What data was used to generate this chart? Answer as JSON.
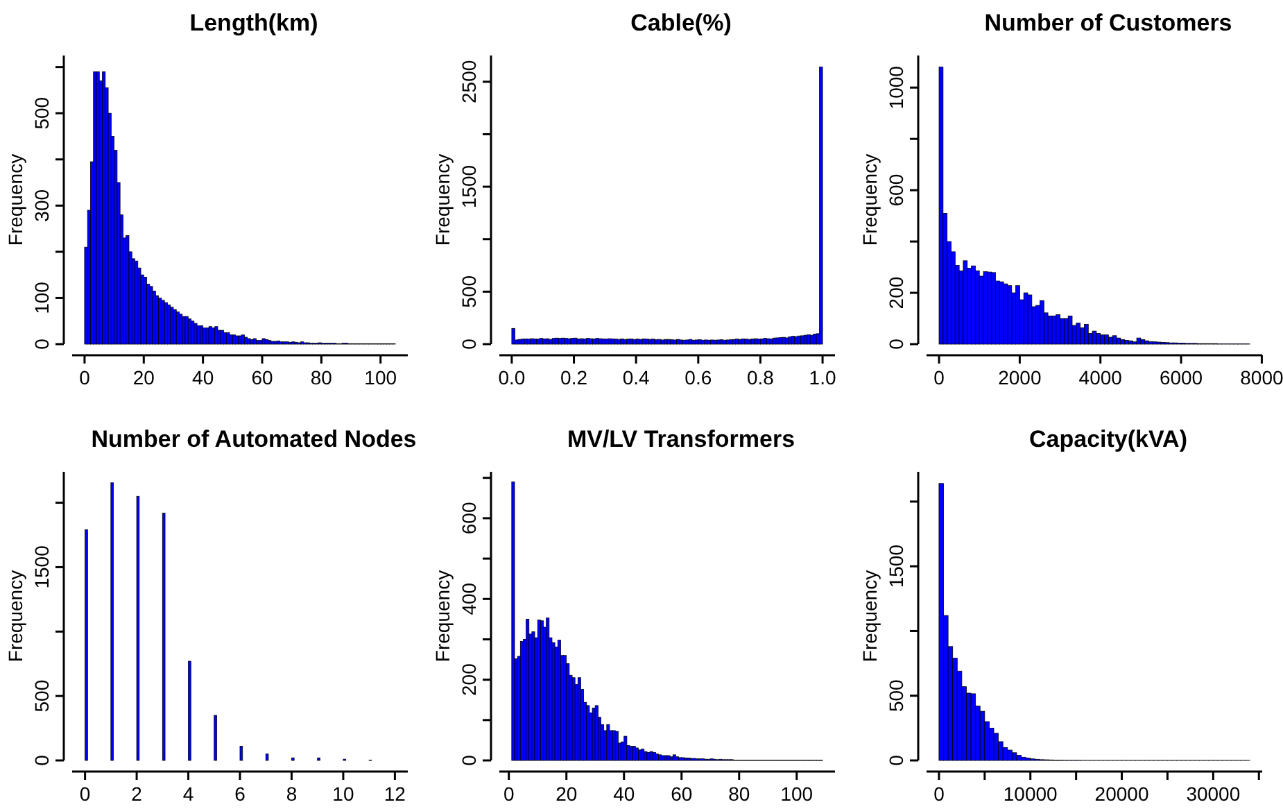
{
  "chart_data": [
    {
      "type": "histogram",
      "title": "Length(km)",
      "ylabel": "Frequency",
      "color": "#0000ff",
      "bins": [
        0,
        1,
        2,
        3,
        4,
        5,
        6,
        7,
        8,
        9,
        10,
        11,
        12,
        13,
        14,
        15,
        16,
        17,
        18,
        19,
        20,
        21,
        22,
        23,
        24,
        25,
        26,
        27,
        28,
        29,
        30,
        31,
        32,
        33,
        34,
        35,
        36,
        37,
        38,
        39,
        40,
        41,
        42,
        43,
        44,
        45,
        46,
        47,
        48,
        49,
        50,
        51,
        52,
        53,
        54,
        55,
        56,
        57,
        58,
        59,
        60,
        61,
        62,
        63,
        64,
        65,
        66,
        67,
        68,
        69,
        70,
        71,
        72,
        73,
        74,
        75,
        76,
        77,
        78,
        79,
        80,
        81,
        82,
        83,
        84,
        85,
        86,
        87,
        88,
        89,
        90,
        91,
        92,
        93,
        94,
        95,
        96,
        97,
        98,
        99,
        100,
        101,
        102,
        103,
        104,
        105
      ],
      "values": [
        210,
        290,
        395,
        590,
        590,
        570,
        590,
        555,
        500,
        450,
        420,
        350,
        280,
        230,
        235,
        200,
        185,
        180,
        165,
        150,
        145,
        130,
        125,
        115,
        105,
        100,
        95,
        90,
        85,
        80,
        75,
        70,
        65,
        60,
        60,
        55,
        50,
        45,
        40,
        40,
        35,
        35,
        38,
        35,
        38,
        30,
        30,
        25,
        25,
        20,
        20,
        18,
        18,
        20,
        15,
        12,
        10,
        12,
        8,
        8,
        12,
        10,
        8,
        6,
        6,
        7,
        5,
        5,
        5,
        4,
        5,
        4,
        3,
        5,
        3,
        3,
        2,
        2,
        2,
        3,
        2,
        2,
        2,
        2,
        2,
        1,
        1,
        2,
        2,
        1,
        1,
        1,
        1,
        1,
        1,
        1,
        1,
        1,
        1,
        1,
        1,
        1,
        1,
        1,
        1
      ],
      "xlim": [
        -4.2,
        109.2
      ],
      "ylim": [
        0,
        625
      ],
      "xticks": [
        0,
        20,
        40,
        60,
        80,
        100
      ],
      "yticks": [
        0,
        100,
        {
          "value": 200,
          "label": null
        },
        300,
        {
          "value": 400,
          "label": null
        },
        500,
        {
          "value": 600,
          "label": null
        }
      ]
    },
    {
      "type": "histogram",
      "title": "Cable(%)",
      "ylabel": "Frequency",
      "color": "#0000ff",
      "bins": [
        0,
        0.01,
        0.02,
        0.03,
        0.04,
        0.05,
        0.06,
        0.07,
        0.08,
        0.09,
        0.1,
        0.11,
        0.12,
        0.13,
        0.14,
        0.15,
        0.16,
        0.17,
        0.18,
        0.19,
        0.2,
        0.21,
        0.22,
        0.23,
        0.24,
        0.25,
        0.26,
        0.27,
        0.28,
        0.29,
        0.3,
        0.31,
        0.32,
        0.33,
        0.34,
        0.35,
        0.36,
        0.37,
        0.38,
        0.39,
        0.4,
        0.41,
        0.42,
        0.43,
        0.44,
        0.45,
        0.46,
        0.47,
        0.48,
        0.49,
        0.5,
        0.51,
        0.52,
        0.53,
        0.54,
        0.55,
        0.56,
        0.57,
        0.58,
        0.59,
        0.6,
        0.61,
        0.62,
        0.63,
        0.64,
        0.65,
        0.66,
        0.67,
        0.68,
        0.69,
        0.7,
        0.71,
        0.72,
        0.73,
        0.74,
        0.75,
        0.76,
        0.77,
        0.78,
        0.79,
        0.8,
        0.81,
        0.82,
        0.83,
        0.84,
        0.85,
        0.86,
        0.87,
        0.88,
        0.89,
        0.9,
        0.91,
        0.92,
        0.93,
        0.94,
        0.95,
        0.96,
        0.97,
        0.98,
        0.99,
        1
      ],
      "values": [
        150,
        40,
        45,
        48,
        50,
        48,
        52,
        50,
        48,
        55,
        50,
        52,
        45,
        55,
        58,
        55,
        58,
        55,
        52,
        55,
        58,
        50,
        52,
        50,
        55,
        52,
        50,
        55,
        52,
        50,
        48,
        52,
        50,
        48,
        45,
        50,
        45,
        48,
        50,
        45,
        48,
        45,
        50,
        48,
        45,
        48,
        42,
        45,
        40,
        45,
        45,
        42,
        40,
        45,
        40,
        38,
        40,
        45,
        38,
        40,
        42,
        38,
        40,
        38,
        40,
        38,
        40,
        42,
        38,
        40,
        42,
        45,
        48,
        45,
        50,
        48,
        45,
        50,
        52,
        48,
        50,
        55,
        52,
        50,
        58,
        60,
        62,
        65,
        60,
        70,
        75,
        72,
        78,
        80,
        85,
        90,
        85,
        95,
        100,
        2640
      ],
      "xlim": [
        -0.04,
        1.04
      ],
      "ylim": [
        0,
        2750
      ],
      "xticks": [
        {
          "value": 0,
          "label": "0.0"
        },
        {
          "value": 0.2,
          "label": "0.2"
        },
        {
          "value": 0.4,
          "label": "0.4"
        },
        {
          "value": 0.6,
          "label": "0.6"
        },
        {
          "value": 0.8,
          "label": "0.8"
        },
        {
          "value": 1,
          "label": "1.0"
        }
      ],
      "yticks": [
        0,
        500,
        {
          "value": 1000,
          "label": null
        },
        1500,
        {
          "value": 2000,
          "label": null
        },
        2500
      ]
    },
    {
      "type": "histogram",
      "title": "Number of Customers",
      "ylabel": "Frequency",
      "color": "#0000ff",
      "bins": [
        0,
        100,
        200,
        300,
        400,
        500,
        600,
        700,
        800,
        900,
        1000,
        1100,
        1200,
        1300,
        1400,
        1500,
        1600,
        1700,
        1800,
        1900,
        2000,
        2100,
        2200,
        2300,
        2400,
        2500,
        2600,
        2700,
        2800,
        2900,
        3000,
        3100,
        3200,
        3300,
        3400,
        3500,
        3600,
        3700,
        3800,
        3900,
        4000,
        4100,
        4200,
        4300,
        4400,
        4500,
        4600,
        4700,
        4800,
        4900,
        5000,
        5100,
        5200,
        5300,
        5400,
        5500,
        5600,
        5700,
        5800,
        5900,
        6000,
        6100,
        6200,
        6300,
        6400,
        6500,
        6600,
        6700,
        6800,
        6900,
        7000,
        7100,
        7200,
        7300,
        7400,
        7500,
        7600,
        7700
      ],
      "values": [
        1080,
        510,
        400,
        360,
        307,
        286,
        325,
        296,
        305,
        286,
        265,
        283,
        281,
        279,
        246,
        243,
        235,
        228,
        200,
        228,
        173,
        200,
        192,
        146,
        151,
        170,
        122,
        110,
        110,
        115,
        100,
        100,
        110,
        73,
        82,
        64,
        77,
        42,
        51,
        42,
        36,
        36,
        27,
        33,
        24,
        18,
        15,
        13,
        9,
        24,
        18,
        13,
        10,
        9,
        8,
        7,
        6,
        5,
        5,
        4,
        4,
        3,
        3,
        3,
        2,
        2,
        2,
        2,
        2,
        1,
        1,
        1,
        1,
        1,
        1,
        1,
        1
      ],
      "xlim": [
        -310,
        8010
      ],
      "ylim": [
        0,
        1125
      ],
      "xticks": [
        0,
        2000,
        4000,
        6000,
        8000
      ],
      "yticks": [
        0,
        200,
        {
          "value": 400,
          "label": null
        },
        600,
        {
          "value": 800,
          "label": null
        },
        1000
      ]
    },
    {
      "type": "histogram",
      "title": "Number of Automated Nodes",
      "ylabel": "Frequency",
      "color": "#0000ff",
      "bins": [
        0,
        0.1,
        1,
        1.1,
        2,
        2.1,
        3,
        3.1,
        4,
        4.1,
        5,
        5.1,
        6,
        6.1,
        7,
        7.1,
        8,
        8.1,
        9,
        9.1,
        10,
        10.1,
        11,
        11.1
      ],
      "values": [
        1790,
        0,
        2155,
        0,
        2050,
        0,
        1920,
        0,
        770,
        0,
        350,
        0,
        110,
        0,
        50,
        0,
        20,
        0,
        20,
        0,
        10,
        0,
        3
      ],
      "xlim": [
        -0.5,
        12.5
      ],
      "ylim": [
        0,
        2240
      ],
      "xticks": [
        0,
        2,
        4,
        6,
        8,
        10,
        12
      ],
      "yticks": [
        0,
        500,
        {
          "value": 1000,
          "label": null
        },
        1500,
        {
          "value": 2000,
          "label": null
        }
      ]
    },
    {
      "type": "histogram",
      "title": "MV/LV Transformers",
      "ylabel": "Frequency",
      "color": "#0000ff",
      "bins": [
        1,
        2,
        3,
        4,
        5,
        6,
        7,
        8,
        9,
        10,
        11,
        12,
        13,
        14,
        15,
        16,
        17,
        18,
        19,
        20,
        21,
        22,
        23,
        24,
        25,
        26,
        27,
        28,
        29,
        30,
        31,
        32,
        33,
        34,
        35,
        36,
        37,
        38,
        39,
        40,
        41,
        42,
        43,
        44,
        45,
        46,
        47,
        48,
        49,
        50,
        51,
        52,
        53,
        54,
        55,
        56,
        57,
        58,
        59,
        60,
        61,
        62,
        63,
        64,
        65,
        66,
        67,
        68,
        69,
        70,
        71,
        72,
        73,
        74,
        75,
        76,
        77,
        78,
        79,
        80,
        81,
        82,
        83,
        84,
        85,
        86,
        87,
        88,
        89,
        90,
        91,
        92,
        93,
        94,
        95,
        96,
        97,
        98,
        99,
        100,
        101,
        102,
        103,
        104,
        105,
        106,
        107,
        108,
        109
      ],
      "values": [
        690,
        252,
        258,
        295,
        300,
        350,
        313,
        319,
        304,
        348,
        346,
        330,
        353,
        304,
        292,
        281,
        298,
        260,
        260,
        240,
        211,
        205,
        188,
        205,
        176,
        144,
        136,
        118,
        130,
        136,
        107,
        89,
        74,
        89,
        74,
        74,
        72,
        43,
        46,
        60,
        37,
        35,
        35,
        31,
        26,
        28,
        22,
        20,
        22,
        20,
        16,
        14,
        12,
        12,
        12,
        9,
        14,
        9,
        7,
        7,
        6,
        6,
        5,
        5,
        4,
        4,
        4,
        3,
        3,
        4,
        3,
        2,
        3,
        2,
        2,
        2,
        2,
        1,
        1,
        1,
        1,
        1,
        1,
        1,
        1,
        1,
        1,
        1,
        1,
        1,
        1,
        1,
        1,
        1,
        1,
        1,
        1,
        1,
        1,
        1,
        1,
        1,
        1,
        1,
        1,
        1,
        1,
        1
      ],
      "xlim": [
        -3.3,
        113.3
      ],
      "ylim": [
        0,
        715
      ],
      "xticks": [
        0,
        20,
        40,
        60,
        80,
        100
      ],
      "yticks": [
        0,
        {
          "value": 100,
          "label": null
        },
        200,
        {
          "value": 300,
          "label": null
        },
        400,
        {
          "value": 500,
          "label": null
        },
        600,
        {
          "value": 700,
          "label": null
        }
      ]
    },
    {
      "type": "histogram",
      "title": "Capacity(kVA)",
      "ylabel": "Frequency",
      "color": "#0000ff",
      "bins": [
        0,
        500,
        1000,
        1500,
        2000,
        2500,
        3000,
        3500,
        4000,
        4500,
        5000,
        5500,
        6000,
        6500,
        7000,
        7500,
        8000,
        8500,
        9000,
        9500,
        10000,
        10500,
        11000,
        11500,
        12000,
        12500,
        13000,
        13500,
        14000,
        14500,
        15000,
        15500,
        16000,
        16500,
        17000,
        17500,
        18000,
        18500,
        19000,
        19500,
        20000,
        20500,
        21000,
        21500,
        22000,
        22500,
        23000,
        23500,
        24000,
        24500,
        25000,
        25500,
        26000,
        26500,
        27000,
        27500,
        28000,
        28500,
        29000,
        29500,
        30000,
        30500,
        31000,
        31500,
        32000,
        32500,
        33000,
        33500,
        34000
      ],
      "values": [
        2140,
        1120,
        880,
        790,
        690,
        570,
        520,
        515,
        420,
        380,
        300,
        250,
        210,
        145,
        100,
        80,
        60,
        40,
        25,
        18,
        12,
        9,
        6,
        5,
        4,
        3,
        3,
        2,
        2,
        2,
        2,
        1,
        1,
        1,
        1,
        1,
        1,
        1,
        1,
        1,
        1,
        1,
        1,
        1,
        1,
        1,
        1,
        1,
        1,
        1,
        1,
        1,
        1,
        1,
        1,
        1,
        1,
        1,
        1,
        1,
        1,
        1,
        1,
        1,
        1,
        1,
        1,
        1
      ],
      "xlim": [
        -1360,
        35360
      ],
      "ylim": [
        0,
        2230
      ],
      "xticks": [
        0,
        {
          "value": 5000,
          "label": null
        },
        10000,
        {
          "value": 15000,
          "label": null
        },
        20000,
        {
          "value": 25000,
          "label": null
        },
        30000,
        {
          "value": 35000,
          "label": null
        }
      ],
      "yticks": [
        0,
        500,
        {
          "value": 1000,
          "label": null
        },
        1500,
        {
          "value": 2000,
          "label": null
        }
      ]
    }
  ]
}
